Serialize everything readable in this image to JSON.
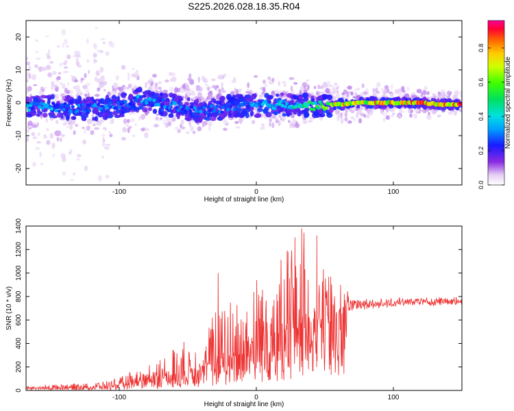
{
  "page": {
    "title": "S225.2026.028.18.35.R04"
  },
  "chart_data": [
    {
      "type": "heatmap",
      "xlabel": "Height of straight line (km)",
      "ylabel": "Frequency (Hz)",
      "xlim": [
        -168,
        150
      ],
      "ylim": [
        -25,
        25
      ],
      "xticks": [
        -100,
        0,
        100
      ],
      "yticks": [
        -20,
        -10,
        0,
        10,
        20
      ],
      "colorbar": {
        "label": "Normalized spectral amplitude",
        "range": [
          0,
          0.96
        ],
        "ticks": [
          0.0,
          0.2,
          0.4,
          0.6,
          0.8
        ]
      },
      "ridge": [
        {
          "x": -155,
          "freq": -1.0,
          "amp": 0.35
        },
        {
          "x": -140,
          "freq": -1.5,
          "amp": 0.3
        },
        {
          "x": -120,
          "freq": -1.8,
          "amp": 0.3
        },
        {
          "x": -100,
          "freq": -1.0,
          "amp": 0.3
        },
        {
          "x": -85,
          "freq": 1.0,
          "amp": 0.35
        },
        {
          "x": -70,
          "freq": 0.0,
          "amp": 0.3
        },
        {
          "x": -55,
          "freq": -1.5,
          "amp": 0.3
        },
        {
          "x": -45,
          "freq": -2.5,
          "amp": 0.3
        },
        {
          "x": -30,
          "freq": -2.0,
          "amp": 0.3
        },
        {
          "x": -15,
          "freq": -1.0,
          "amp": 0.3
        },
        {
          "x": 0,
          "freq": -1.0,
          "amp": 0.35
        },
        {
          "x": 15,
          "freq": -0.5,
          "amp": 0.4
        },
        {
          "x": 30,
          "freq": -0.5,
          "amp": 0.45
        },
        {
          "x": 45,
          "freq": -1.0,
          "amp": 0.5
        },
        {
          "x": 60,
          "freq": -0.5,
          "amp": 0.75
        },
        {
          "x": 75,
          "freq": 0.0,
          "amp": 0.7
        },
        {
          "x": 90,
          "freq": 0.0,
          "amp": 0.8
        },
        {
          "x": 105,
          "freq": 0.0,
          "amp": 0.75
        },
        {
          "x": 120,
          "freq": 0.0,
          "amp": 0.85
        },
        {
          "x": 135,
          "freq": -0.5,
          "amp": 0.75
        },
        {
          "x": 148,
          "freq": -0.5,
          "amp": 0.9
        }
      ]
    },
    {
      "type": "line",
      "xlabel": "Height of straight line (km)",
      "ylabel": "SNR (10 * v/v)",
      "xlim": [
        -168,
        150
      ],
      "ylim": [
        0,
        1400
      ],
      "xticks": [
        -100,
        0,
        100
      ],
      "yticks": [
        0,
        200,
        400,
        600,
        800,
        1000,
        1200,
        1400
      ],
      "series": [
        {
          "color": "#ee3333",
          "envelope": [
            {
              "x": -168,
              "base": 20,
              "peak": 35
            },
            {
              "x": -140,
              "base": 25,
              "peak": 60
            },
            {
              "x": -120,
              "base": 30,
              "peak": 60
            },
            {
              "x": -100,
              "base": 45,
              "peak": 110
            },
            {
              "x": -85,
              "base": 80,
              "peak": 200
            },
            {
              "x": -70,
              "base": 110,
              "peak": 280
            },
            {
              "x": -55,
              "base": 150,
              "peak": 420
            },
            {
              "x": -40,
              "base": 200,
              "peak": 450
            },
            {
              "x": -30,
              "base": 240,
              "peak": 720
            },
            {
              "x": -20,
              "base": 300,
              "peak": 760
            },
            {
              "x": -10,
              "base": 350,
              "peak": 860
            },
            {
              "x": 0,
              "base": 420,
              "peak": 1000
            },
            {
              "x": 15,
              "base": 480,
              "peak": 1140
            },
            {
              "x": 30,
              "base": 550,
              "peak": 1380
            },
            {
              "x": 40,
              "base": 580,
              "peak": 1320
            },
            {
              "x": 55,
              "base": 620,
              "peak": 1000
            },
            {
              "x": 68,
              "base": 680,
              "peak": 850
            },
            {
              "x": 80,
              "base": 700,
              "peak": 780
            },
            {
              "x": 100,
              "base": 720,
              "peak": 790
            },
            {
              "x": 120,
              "base": 730,
              "peak": 800
            },
            {
              "x": 150,
              "base": 730,
              "peak": 800
            }
          ],
          "spikes": [
            {
              "x": -28,
              "y": 1000
            },
            {
              "x": 33,
              "y": 1380
            },
            {
              "x": 44,
              "y": 1320
            },
            {
              "x": 23,
              "y": 1180
            }
          ]
        }
      ]
    }
  ]
}
